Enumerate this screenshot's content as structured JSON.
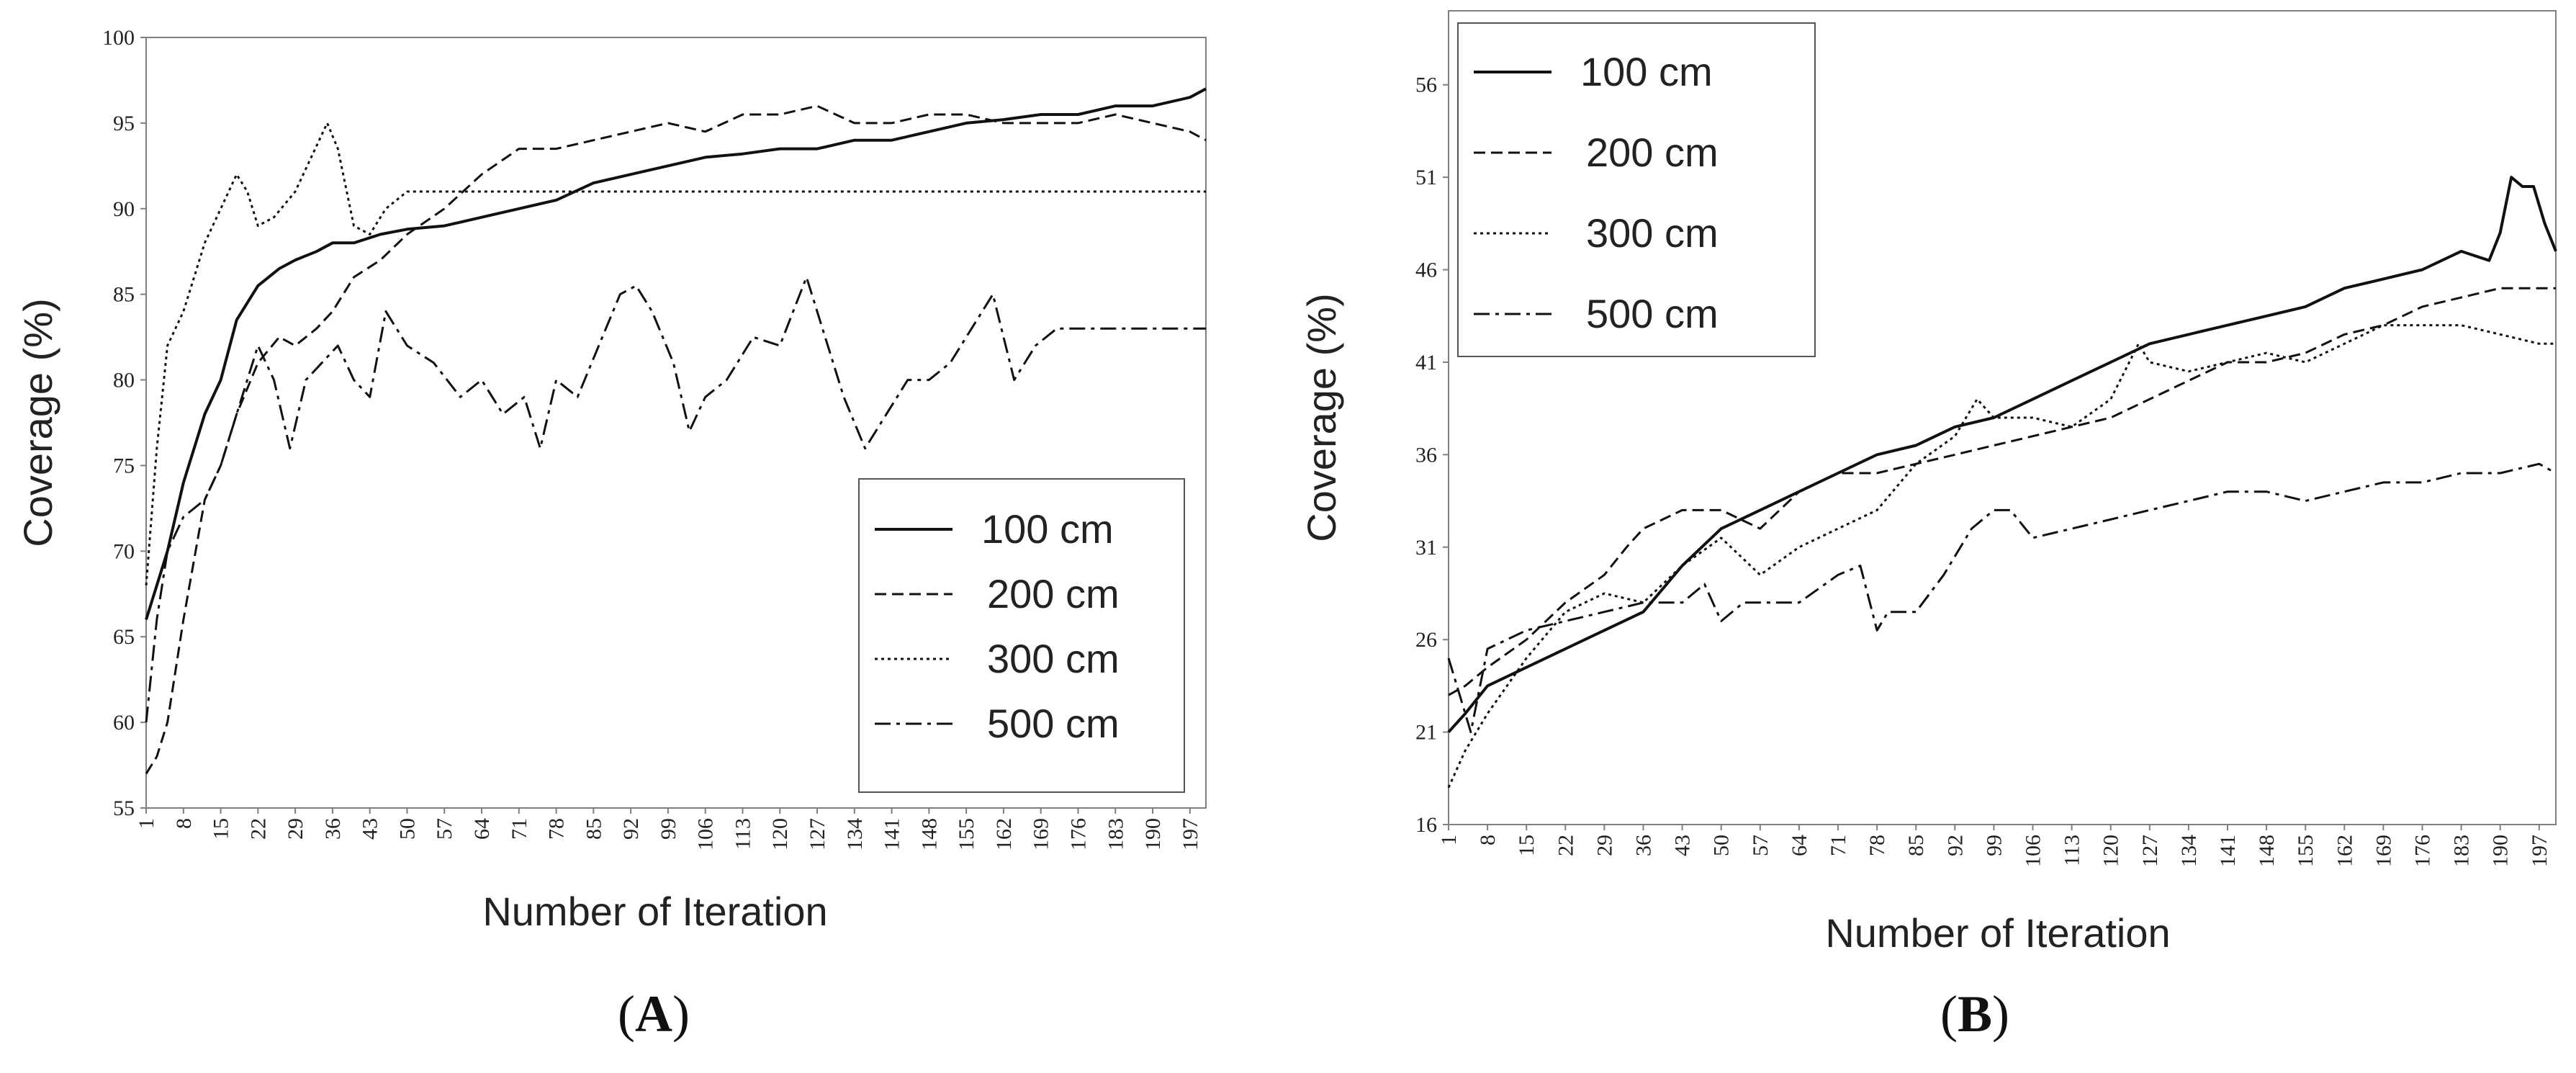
{
  "chart_data": [
    {
      "type": "line",
      "panel_label": "A",
      "xlabel": "Number of Iteration",
      "ylabel": "Coverage (%)",
      "xlim": [
        1,
        200
      ],
      "ylim": [
        55,
        100
      ],
      "yticks": [
        55,
        60,
        65,
        70,
        75,
        80,
        85,
        90,
        95,
        100
      ],
      "xticks": [
        1,
        8,
        15,
        22,
        29,
        36,
        43,
        50,
        57,
        64,
        71,
        78,
        85,
        92,
        99,
        106,
        113,
        120,
        127,
        134,
        141,
        148,
        155,
        162,
        169,
        176,
        183,
        190,
        197
      ],
      "legend_position": "bottom-right",
      "series": [
        {
          "name": "100 cm",
          "dash": "solid",
          "x": [
            1,
            3,
            5,
            8,
            12,
            15,
            18,
            22,
            26,
            29,
            33,
            36,
            40,
            45,
            50,
            57,
            64,
            71,
            78,
            85,
            92,
            99,
            106,
            113,
            120,
            127,
            134,
            141,
            148,
            155,
            162,
            169,
            176,
            183,
            190,
            197,
            200
          ],
          "y": [
            66,
            68,
            70,
            74,
            78,
            80,
            83.5,
            85.5,
            86.5,
            87,
            87.5,
            88,
            88,
            88.5,
            88.8,
            89,
            89.5,
            90,
            90.5,
            91.5,
            92,
            92.5,
            93,
            93.2,
            93.5,
            93.5,
            94,
            94,
            94.5,
            95,
            95.2,
            95.5,
            95.5,
            96,
            96,
            96.5,
            97
          ]
        },
        {
          "name": "200 cm",
          "dash": "dashed",
          "x": [
            1,
            3,
            5,
            8,
            12,
            15,
            18,
            22,
            26,
            29,
            33,
            36,
            40,
            45,
            50,
            57,
            64,
            71,
            78,
            85,
            92,
            99,
            106,
            113,
            120,
            127,
            134,
            141,
            148,
            155,
            162,
            169,
            176,
            183,
            190,
            197,
            200
          ],
          "y": [
            57,
            58,
            60,
            66,
            73,
            75,
            78,
            81,
            82.5,
            82,
            83,
            84,
            86,
            87,
            88.5,
            90,
            92,
            93.5,
            93.5,
            94,
            94.5,
            95,
            94.5,
            95.5,
            95.5,
            96,
            95,
            95,
            95.5,
            95.5,
            95,
            95,
            95,
            95.5,
            95,
            94.5,
            94
          ]
        },
        {
          "name": "300 cm",
          "dash": "dotted",
          "x": [
            1,
            3,
            5,
            8,
            10,
            12,
            15,
            18,
            20,
            22,
            25,
            29,
            32,
            35,
            37,
            40,
            43,
            46,
            50,
            57,
            64,
            71,
            78,
            85,
            92,
            99,
            106,
            113,
            120,
            127,
            134,
            141,
            148,
            155,
            162,
            169,
            176,
            183,
            190,
            197,
            200
          ],
          "y": [
            68,
            76,
            82,
            84,
            86,
            88,
            90,
            92,
            91,
            89,
            89.5,
            91,
            93,
            95,
            93.5,
            89,
            88.5,
            90,
            91,
            91,
            91,
            91,
            91,
            91,
            91,
            91,
            91,
            91,
            91,
            91,
            91,
            91,
            91,
            91,
            91,
            91,
            91,
            91,
            91,
            91,
            91
          ]
        },
        {
          "name": "500 cm",
          "dash": "dashdot",
          "x": [
            1,
            3,
            5,
            8,
            12,
            15,
            18,
            22,
            25,
            28,
            31,
            34,
            37,
            40,
            43,
            46,
            50,
            55,
            60,
            64,
            68,
            72,
            75,
            78,
            82,
            86,
            90,
            93,
            96,
            100,
            103,
            106,
            110,
            115,
            120,
            125,
            128,
            132,
            136,
            140,
            144,
            148,
            152,
            156,
            160,
            164,
            168,
            172,
            176,
            182,
            190,
            197,
            200
          ],
          "y": [
            60,
            66,
            70,
            72,
            73,
            75,
            78,
            82,
            80,
            76,
            80,
            81,
            82,
            80,
            79,
            84,
            82,
            81,
            79,
            80,
            78,
            79,
            76,
            80,
            79,
            82,
            85,
            85.5,
            84,
            81,
            77,
            79,
            80,
            82.5,
            82,
            86,
            83,
            79,
            76,
            78,
            80,
            80,
            81,
            83,
            85,
            80,
            82,
            83,
            83,
            83,
            83,
            83,
            83
          ]
        }
      ]
    },
    {
      "type": "line",
      "panel_label": "B",
      "xlabel": "Number of Iteration",
      "ylabel": "Coverage (%)",
      "xlim": [
        1,
        200
      ],
      "ylim": [
        16,
        60
      ],
      "yticks": [
        16,
        21,
        26,
        31,
        36,
        41,
        46,
        51,
        56
      ],
      "xticks": [
        1,
        8,
        15,
        22,
        29,
        36,
        43,
        50,
        57,
        64,
        71,
        78,
        85,
        92,
        99,
        106,
        113,
        120,
        127,
        134,
        141,
        148,
        155,
        162,
        169,
        176,
        183,
        190,
        197
      ],
      "legend_position": "top-left",
      "series": [
        {
          "name": "100 cm",
          "dash": "solid",
          "x": [
            1,
            4,
            8,
            15,
            22,
            29,
            36,
            43,
            50,
            57,
            64,
            71,
            78,
            85,
            92,
            99,
            106,
            113,
            120,
            127,
            134,
            141,
            148,
            155,
            162,
            169,
            176,
            183,
            188,
            190,
            192,
            194,
            196,
            198,
            200
          ],
          "y": [
            21,
            22,
            23.5,
            24.5,
            25.5,
            26.5,
            27.5,
            30,
            32,
            33,
            34,
            35,
            36,
            36.5,
            37.5,
            38,
            39,
            40,
            41,
            42,
            42.5,
            43,
            43.5,
            44,
            45,
            45.5,
            46,
            47,
            46.5,
            48,
            51,
            50.5,
            50.5,
            48.5,
            47
          ]
        },
        {
          "name": "200 cm",
          "dash": "dashed",
          "x": [
            1,
            4,
            8,
            15,
            22,
            29,
            33,
            36,
            43,
            50,
            57,
            64,
            71,
            78,
            85,
            92,
            99,
            106,
            113,
            120,
            127,
            134,
            141,
            148,
            155,
            162,
            169,
            176,
            183,
            190,
            197,
            200
          ],
          "y": [
            23,
            23.5,
            24.5,
            26,
            28,
            29.5,
            31,
            32,
            33,
            33,
            32,
            34,
            35,
            35,
            35.5,
            36,
            36.5,
            37,
            37.5,
            38,
            39,
            40,
            41,
            41,
            41.5,
            42.5,
            43,
            44,
            44.5,
            45,
            45,
            45
          ]
        },
        {
          "name": "300 cm",
          "dash": "dotted",
          "x": [
            1,
            4,
            8,
            15,
            22,
            29,
            36,
            43,
            50,
            57,
            64,
            71,
            78,
            85,
            92,
            96,
            99,
            106,
            113,
            120,
            125,
            127,
            134,
            141,
            148,
            155,
            162,
            169,
            176,
            183,
            190,
            197,
            200
          ],
          "y": [
            18,
            20,
            22,
            25,
            27.5,
            28.5,
            28,
            30,
            31.5,
            29.5,
            31,
            32,
            33,
            35.5,
            37,
            39,
            38,
            38,
            37.5,
            39,
            42,
            41,
            40.5,
            41,
            41.5,
            41,
            42,
            43,
            43,
            43,
            42.5,
            42,
            42
          ]
        },
        {
          "name": "500 cm",
          "dash": "dashdot",
          "x": [
            1,
            3,
            5,
            8,
            15,
            22,
            29,
            36,
            43,
            47,
            50,
            54,
            57,
            64,
            71,
            75,
            78,
            80,
            85,
            90,
            95,
            99,
            102,
            106,
            113,
            120,
            127,
            134,
            141,
            148,
            155,
            162,
            169,
            176,
            183,
            190,
            197,
            200
          ],
          "y": [
            25,
            23,
            21,
            25.5,
            26.5,
            27,
            27.5,
            28,
            28,
            29,
            27,
            28,
            28,
            28,
            29.5,
            30,
            26.5,
            27.5,
            27.5,
            29.5,
            32,
            33,
            33,
            31.5,
            32,
            32.5,
            33,
            33.5,
            34,
            34,
            33.5,
            34,
            34.5,
            34.5,
            35,
            35,
            35.5,
            35
          ]
        }
      ]
    }
  ]
}
